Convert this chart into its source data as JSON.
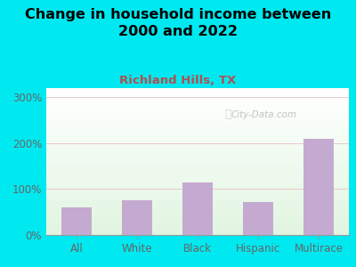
{
  "title": "Change in household income between\n2000 and 2022",
  "subtitle": "Richland Hills, TX",
  "categories": [
    "All",
    "White",
    "Black",
    "Hispanic",
    "Multirace"
  ],
  "values": [
    60,
    75,
    115,
    72,
    210
  ],
  "bar_color": "#c4aad0",
  "title_fontsize": 11.5,
  "subtitle_fontsize": 9.5,
  "subtitle_color": "#b05050",
  "title_color": "#000000",
  "background_outer": "#00e8f0",
  "ylim": [
    0,
    320
  ],
  "yticks": [
    0,
    100,
    200,
    300
  ],
  "ytick_labels": [
    "0%",
    "100%",
    "200%",
    "300%"
  ],
  "watermark": "City-Data.com",
  "grid_color": "#e8c8c8",
  "axis_tick_color": "#666666"
}
